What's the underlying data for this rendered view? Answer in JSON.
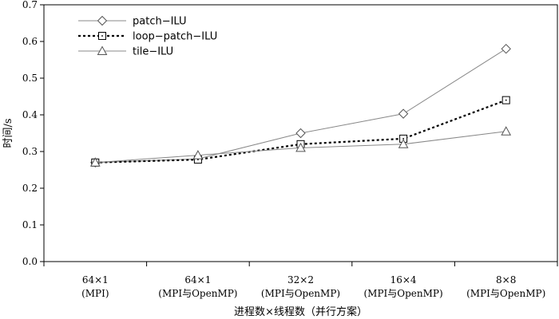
{
  "chart_data": {
    "type": "line",
    "title": "",
    "categories": [
      [
        "64×1",
        "(MPI)"
      ],
      [
        "64×1",
        "(MPI与OpenMP)"
      ],
      [
        "32×2",
        "(MPI与OpenMP)"
      ],
      [
        "16×4",
        "(MPI与OpenMP)"
      ],
      [
        "8×8",
        "(MPI与OpenMP)"
      ]
    ],
    "xlabel": "进程数×线程数（并行方案）",
    "ylabel": "时间/s",
    "ylim": [
      0,
      0.7
    ],
    "yticks": [
      0.0,
      0.1,
      0.2,
      0.3,
      0.4,
      0.5,
      0.6,
      0.7
    ],
    "ytick_labels": [
      "0.0",
      "0.1",
      "0.2",
      "0.3",
      "0.4",
      "0.5",
      "0.6",
      "0.7"
    ],
    "legend_position": "top-left",
    "series": [
      {
        "name": "patch−ILU",
        "values": [
          0.27,
          0.28,
          0.35,
          0.403,
          0.58
        ],
        "marker": "diamond",
        "line": "solid",
        "color": "#888888"
      },
      {
        "name": "loop−patch−ILU",
        "values": [
          0.27,
          0.278,
          0.32,
          0.335,
          0.44
        ],
        "marker": "square",
        "line": "dotted",
        "color": "#000000"
      },
      {
        "name": "tile−ILU",
        "values": [
          0.27,
          0.29,
          0.31,
          0.32,
          0.355
        ],
        "marker": "triangle",
        "line": "solid",
        "color": "#888888"
      }
    ]
  }
}
